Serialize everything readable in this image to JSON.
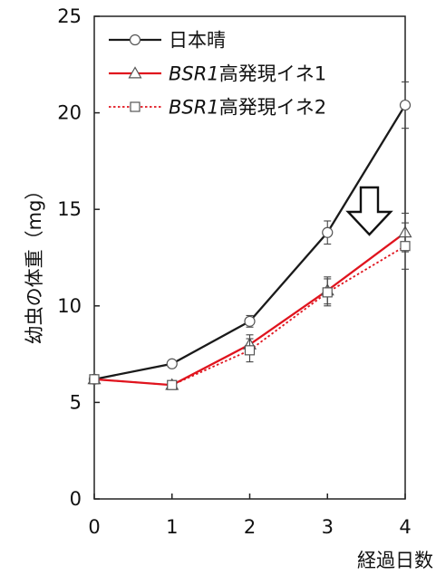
{
  "chart_data": {
    "type": "line",
    "ylabel": "幼虫の体重（mg）",
    "xlabel": "経過日数",
    "x": [
      0,
      1,
      2,
      3,
      4
    ],
    "xlim": [
      0,
      4
    ],
    "ylim": [
      0,
      25
    ],
    "xticks": [
      "0",
      "1",
      "2",
      "3",
      "4"
    ],
    "yticks": [
      "0",
      "5",
      "10",
      "15",
      "20",
      "25"
    ],
    "legend_position": "top-left",
    "series": [
      {
        "legend_plain": "日本晴",
        "legend_italic": "",
        "legend_rest": "",
        "values": [
          6.2,
          7.0,
          9.2,
          13.8,
          20.4
        ],
        "errors": [
          0.1,
          0.15,
          0.3,
          0.6,
          1.2
        ],
        "color": "#1a1a1a",
        "marker": "circle",
        "dashed": false
      },
      {
        "legend_plain": "",
        "legend_italic": "BSR1",
        "legend_rest": "高発現イネ1",
        "values": [
          6.2,
          5.9,
          8.0,
          10.8,
          13.8
        ],
        "errors": [
          0.1,
          0.2,
          0.5,
          0.7,
          1.0
        ],
        "color": "#e0141e",
        "marker": "triangle",
        "dashed": false
      },
      {
        "legend_plain": "",
        "legend_italic": "BSR1",
        "legend_rest": "高発現イネ2",
        "values": [
          6.2,
          5.9,
          7.7,
          10.7,
          13.1
        ],
        "errors": [
          0.1,
          0.2,
          0.6,
          0.7,
          1.2
        ],
        "color": "#e0141e",
        "marker": "square",
        "dashed": true
      }
    ],
    "annotation": "down-arrow"
  }
}
